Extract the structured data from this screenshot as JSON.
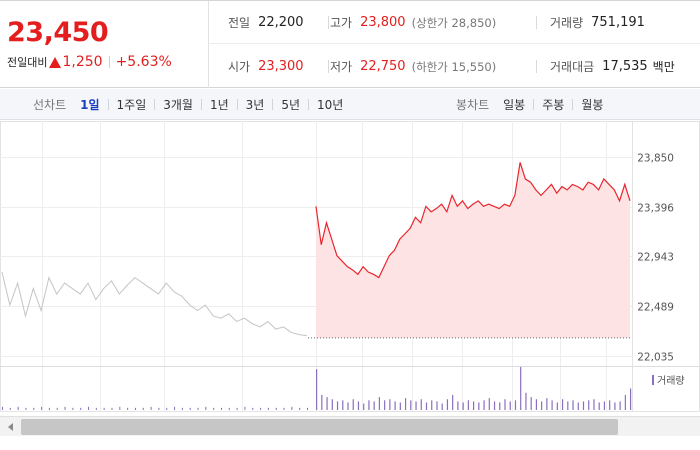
{
  "quote": {
    "price": "23,450",
    "change_label": "전일대비",
    "change_amount": "1,250",
    "change_percent": "+5.63%",
    "direction": "up",
    "rows": [
      [
        {
          "label": "전일",
          "value": "22,200",
          "sub": "",
          "unit": "",
          "color": "black"
        },
        {
          "label": "고가",
          "value": "23,800",
          "sub": "(상한가 28,850)",
          "unit": "",
          "color": "red"
        },
        {
          "label": "거래량",
          "value": "751,191",
          "sub": "",
          "unit": "",
          "color": "black"
        }
      ],
      [
        {
          "label": "시가",
          "value": "23,300",
          "sub": "",
          "unit": "",
          "color": "red"
        },
        {
          "label": "저가",
          "value": "22,750",
          "sub": "(하한가 15,550)",
          "unit": "",
          "color": "red"
        },
        {
          "label": "거래대금",
          "value": "17,535",
          "sub": "",
          "unit": "백만",
          "color": "black"
        }
      ]
    ]
  },
  "tabs": {
    "line_title": "선차트",
    "line_items": [
      "1일",
      "1주일",
      "3개월",
      "1년",
      "3년",
      "5년",
      "10년"
    ],
    "line_active": "1일",
    "candle_title": "봉차트",
    "candle_items": [
      "일봉",
      "주봉",
      "월봉"
    ]
  },
  "colors": {
    "up": "#e41e1e",
    "down": "#1a3fbf",
    "line_today": "#e8262e",
    "fill_today": "#fde3e3",
    "line_prev": "#c4c4c4",
    "volume": "#8a6fbf"
  },
  "chart_data": {
    "type": "line",
    "y_ticks": [
      "23,850",
      "23,396",
      "22,943",
      "22,489",
      "22,035"
    ],
    "ylim": [
      22035,
      23850
    ],
    "prev_close": 22200,
    "prev_day_series": [
      22800,
      22500,
      22700,
      22400,
      22650,
      22450,
      22750,
      22600,
      22700,
      22650,
      22600,
      22700,
      22550,
      22650,
      22720,
      22600,
      22680,
      22750,
      22700,
      22650,
      22600,
      22700,
      22620,
      22580,
      22500,
      22450,
      22500,
      22400,
      22380,
      22420,
      22350,
      22380,
      22330,
      22300,
      22350,
      22280,
      22300,
      22250,
      22230,
      22220
    ],
    "today_series": [
      23400,
      23050,
      23250,
      23100,
      22950,
      22900,
      22850,
      22820,
      22780,
      22850,
      22800,
      22780,
      22750,
      22850,
      22950,
      23000,
      23100,
      23150,
      23200,
      23300,
      23250,
      23400,
      23350,
      23380,
      23420,
      23350,
      23500,
      23400,
      23450,
      23380,
      23420,
      23450,
      23400,
      23420,
      23400,
      23380,
      23420,
      23400,
      23500,
      23800,
      23650,
      23620,
      23550,
      23500,
      23550,
      23600,
      23520,
      23580,
      23550,
      23600,
      23580,
      23550,
      23620,
      23600,
      23550,
      23650,
      23600,
      23550,
      23450,
      23600,
      23450
    ],
    "volume_label": "거래량",
    "volume_prev": [
      3,
      2,
      3,
      2,
      2,
      3,
      2,
      2,
      3,
      2,
      2,
      3,
      2,
      2,
      2,
      3,
      2,
      2,
      2,
      3,
      2,
      2,
      3,
      2,
      2,
      2,
      3,
      2,
      2,
      2,
      2,
      3,
      2,
      2,
      2,
      2,
      2,
      3,
      2,
      2
    ],
    "volume_today": [
      38,
      14,
      12,
      10,
      8,
      9,
      7,
      10,
      8,
      6,
      9,
      8,
      12,
      9,
      10,
      8,
      7,
      11,
      9,
      8,
      10,
      7,
      9,
      8,
      6,
      10,
      14,
      8,
      7,
      9,
      8,
      7,
      9,
      11,
      8,
      7,
      10,
      8,
      9,
      40,
      16,
      12,
      10,
      8,
      11,
      9,
      7,
      10,
      8,
      9,
      7,
      8,
      9,
      10,
      7,
      8,
      9,
      7,
      8,
      14,
      20
    ]
  }
}
